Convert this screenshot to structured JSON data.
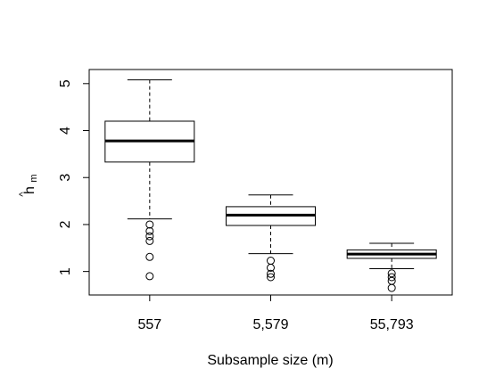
{
  "chart_data": {
    "type": "boxplot",
    "title": "",
    "xlabel": "Subsample size (m)",
    "ylabel": {
      "hat": "^",
      "base": "h",
      "subscript": "m"
    },
    "ylim": [
      0.5,
      5.3
    ],
    "yticks": [
      1,
      2,
      3,
      4,
      5
    ],
    "grid": false,
    "categories": [
      "557",
      "5,579",
      "55,793"
    ],
    "boxes": [
      {
        "category": "557",
        "whisker_low": 2.12,
        "q1": 3.33,
        "median": 3.78,
        "q3": 4.2,
        "whisker_high": 5.08,
        "outliers": [
          2.0,
          1.86,
          1.75,
          1.65,
          1.31,
          0.9
        ]
      },
      {
        "category": "5,579",
        "whisker_low": 1.38,
        "q1": 1.98,
        "median": 2.2,
        "q3": 2.38,
        "whisker_high": 2.63,
        "outliers": [
          1.23,
          1.08,
          0.95,
          0.88
        ]
      },
      {
        "category": "55,793",
        "whisker_low": 1.06,
        "q1": 1.28,
        "median": 1.37,
        "q3": 1.46,
        "whisker_high": 1.6,
        "outliers": [
          0.96,
          0.88,
          0.8,
          0.65
        ]
      }
    ],
    "colors": {
      "box_fill": "#ffffff",
      "stroke": "#000000"
    }
  }
}
